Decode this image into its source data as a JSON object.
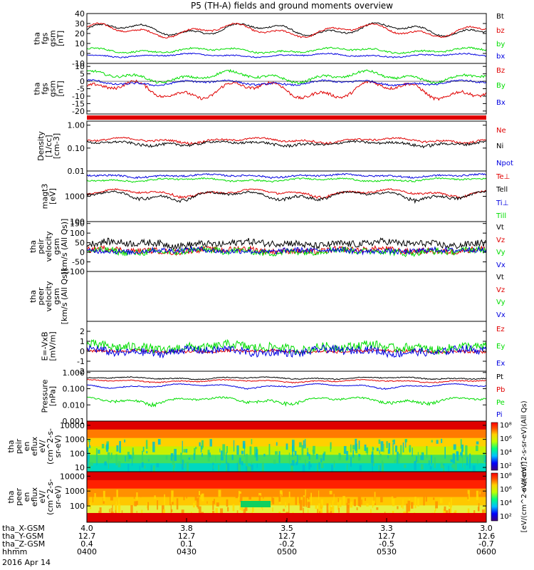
{
  "title": "P5 (TH-A) fields and ground moments overview",
  "date_label": "2016 Apr 14",
  "colors": {
    "black": "#000000",
    "red": "#e00000",
    "green": "#00dd00",
    "blue": "#0000e0"
  },
  "chart_data": [
    {
      "type": "line",
      "id": "p1",
      "ylabel": [
        "tha",
        "fgs",
        "gsm",
        "[nT]"
      ],
      "ylim": [
        -10,
        40
      ],
      "yticks": [
        -10,
        0,
        10,
        20,
        30,
        40
      ],
      "ytick_labels": [
        "-10",
        "0",
        "10",
        "20",
        "30",
        "40"
      ],
      "series": [
        {
          "name": "Bt",
          "color": "black",
          "base": 24,
          "amp": 7,
          "noise": 0.8
        },
        {
          "name": "bz",
          "color": "red",
          "base": 23,
          "amp": 7,
          "noise": 0.8
        },
        {
          "name": "by",
          "color": "green",
          "base": 3,
          "amp": 3,
          "noise": 0.8
        },
        {
          "name": "bx",
          "color": "blue",
          "base": -2,
          "amp": 2,
          "noise": 0.6
        }
      ]
    },
    {
      "type": "line",
      "id": "p2",
      "ylabel": [
        "tha",
        "fgs",
        "gsm",
        "[nT]"
      ],
      "ylim": [
        -22,
        12
      ],
      "yticks": [
        -20,
        -15,
        -10,
        -5,
        0,
        5,
        10
      ],
      "ytick_labels": [
        "-20",
        "-15",
        "-10",
        "-5",
        "0",
        "5",
        "10"
      ],
      "series": [
        {
          "name": "Bz",
          "color": "red",
          "base": -6,
          "amp": 7,
          "noise": 1.0
        },
        {
          "name": "By",
          "color": "green",
          "base": 3,
          "amp": 4,
          "noise": 0.8
        },
        {
          "name": "Bx",
          "color": "blue",
          "base": -1,
          "amp": 2,
          "noise": 0.6
        }
      ]
    },
    {
      "type": "bar",
      "id": "p3",
      "series": [
        {
          "name": "",
          "color": "red"
        }
      ]
    },
    {
      "type": "line",
      "id": "p4",
      "scale": "log",
      "ylabel": [
        "Density",
        "[1/cc]",
        "[cm-3]"
      ],
      "ylim": [
        0.01,
        1.5
      ],
      "yticks": [
        0.01,
        0.1,
        1.0
      ],
      "ytick_labels": [
        "0.01",
        "0.10",
        "1.00"
      ],
      "series": [
        {
          "name": "Ne",
          "color": "red",
          "base": 0.22,
          "amp": 0.06,
          "noise": 0.02
        },
        {
          "name": "Ni",
          "color": "black",
          "base": 0.16,
          "amp": 0.04,
          "noise": 0.02
        },
        {
          "name": "Npot",
          "color": "blue",
          "base": 0,
          "amp": 0,
          "noise": 0,
          "hidden": true
        }
      ]
    },
    {
      "type": "line",
      "id": "p5",
      "scale": "log",
      "ylabel": [
        "magt3",
        "[eV]"
      ],
      "ylim": [
        100,
        10000
      ],
      "yticks": [
        100,
        1000
      ],
      "ytick_labels": [
        "100",
        "1000"
      ],
      "series": [
        {
          "name": "Te⊥",
          "color": "red",
          "base": 1400,
          "amp": 500,
          "noise": 120
        },
        {
          "name": "Tell",
          "color": "black",
          "base": 1100,
          "amp": 500,
          "noise": 120
        },
        {
          "name": "Ti⊥",
          "color": "blue",
          "base": 6500,
          "amp": 1000,
          "noise": 500
        },
        {
          "name": "Till",
          "color": "green",
          "base": 4500,
          "amp": 800,
          "noise": 300
        }
      ]
    },
    {
      "type": "line",
      "id": "p6",
      "ylabel": [
        "tha",
        "peir",
        "velocity",
        "gsm",
        "[km/s (All Qs)]"
      ],
      "ylim": [
        -100,
        160
      ],
      "yticks": [
        -100,
        -50,
        0,
        50,
        100,
        150
      ],
      "ytick_labels": [
        "-100",
        "-50",
        "0",
        "50",
        "100",
        "150"
      ],
      "series": [
        {
          "name": "Vt",
          "color": "black",
          "base": 45,
          "amp": 12,
          "noise": 18
        },
        {
          "name": "Vz",
          "color": "red",
          "base": 10,
          "amp": 10,
          "noise": 16
        },
        {
          "name": "Vy",
          "color": "green",
          "base": 5,
          "amp": 10,
          "noise": 18
        },
        {
          "name": "Vx",
          "color": "blue",
          "base": 8,
          "amp": 8,
          "noise": 14
        }
      ]
    },
    {
      "type": "line",
      "id": "p7",
      "ylabel": [
        "tha",
        "peer",
        "velocity",
        "gsm",
        "[km/s (All Qs)]"
      ],
      "ylim": [
        -100,
        160
      ],
      "yticks": [],
      "ytick_labels": [],
      "series": [
        {
          "name": "Vt",
          "color": "black",
          "hidden": true
        },
        {
          "name": "Vz",
          "color": "red",
          "hidden": true
        },
        {
          "name": "Vy",
          "color": "green",
          "hidden": true
        },
        {
          "name": "Vx",
          "color": "blue",
          "hidden": true
        }
      ]
    },
    {
      "type": "line",
      "id": "p8",
      "ylabel": [
        "E=-VxB",
        "[mV/m]"
      ],
      "ylim": [
        -2,
        3
      ],
      "yticks": [
        -2,
        -1,
        0,
        1,
        2
      ],
      "ytick_labels": [
        "-2",
        "-1",
        "0",
        "1",
        "2"
      ],
      "series": [
        {
          "name": "Ez",
          "color": "red",
          "base": 0,
          "amp": 0.1,
          "noise": 0.15
        },
        {
          "name": "Ey",
          "color": "green",
          "base": 0.4,
          "amp": 0.3,
          "noise": 0.45
        },
        {
          "name": "Ex",
          "color": "blue",
          "base": 0,
          "amp": 0.3,
          "noise": 0.4
        }
      ]
    },
    {
      "type": "line",
      "id": "p9",
      "scale": "log",
      "ylabel": [
        "Pressure",
        "[nPa]"
      ],
      "ylim": [
        0.001,
        1.2
      ],
      "yticks": [
        0.001,
        0.01,
        0.1,
        1
      ],
      "ytick_labels": [
        "0.001",
        "0.010",
        "0.100",
        "1.000"
      ],
      "series": [
        {
          "name": "Pt",
          "color": "black",
          "base": 0.45,
          "amp": 0.08,
          "noise": 0.03
        },
        {
          "name": "Pb",
          "color": "red",
          "base": 0.3,
          "amp": 0.06,
          "noise": 0.02
        },
        {
          "name": "Pe",
          "color": "green",
          "base": 0.02,
          "amp": 0.01,
          "noise": 0.003
        },
        {
          "name": "Pi",
          "color": "blue",
          "base": 0.15,
          "amp": 0.05,
          "noise": 0.01
        }
      ]
    },
    {
      "type": "heatmap",
      "id": "p10",
      "scale": "log",
      "ylabel": [
        "tha",
        "peir",
        "en",
        "eflux",
        "eV/",
        "(cm^2-s-",
        "sr-eV)"
      ],
      "ylim": [
        5,
        20000
      ],
      "yticks": [
        10,
        100,
        1000,
        10000
      ],
      "ytick_labels": [
        "10",
        "100",
        "1000",
        "10000"
      ]
    },
    {
      "type": "heatmap",
      "id": "p11",
      "scale": "log",
      "ylabel": [
        "tha",
        "peer",
        "en",
        "eflux",
        "eV/",
        "(cm^2-s-",
        "sr-eV)"
      ],
      "ylim": [
        8,
        20000
      ],
      "yticks": [
        100,
        1000,
        10000
      ],
      "ytick_labels": [
        "100",
        "1000",
        "10000"
      ]
    }
  ],
  "colorbar": {
    "ticks": [
      "10²",
      "10⁴",
      "10⁶",
      "10⁸"
    ],
    "label": "[eV/(cm^2-s-sr-eV)]",
    "label2": "eV/(cm^2-s-sr-eV)(All Qs)"
  },
  "x_axis": {
    "times": [
      "0400",
      "0430",
      "0500",
      "0530",
      "0600"
    ],
    "row_labels": [
      "tha_X-GSM",
      "tha_Y-GSM",
      "tha_Z-GSM",
      "hhmm"
    ],
    "rows": [
      [
        "4.0",
        "3.8",
        "3.5",
        "3.3",
        "3.0"
      ],
      [
        "12.7",
        "12.7",
        "12.7",
        "12.7",
        "12.6"
      ],
      [
        "0.4",
        "0.1",
        "-0.2",
        "-0.5",
        "-0.7"
      ]
    ]
  }
}
